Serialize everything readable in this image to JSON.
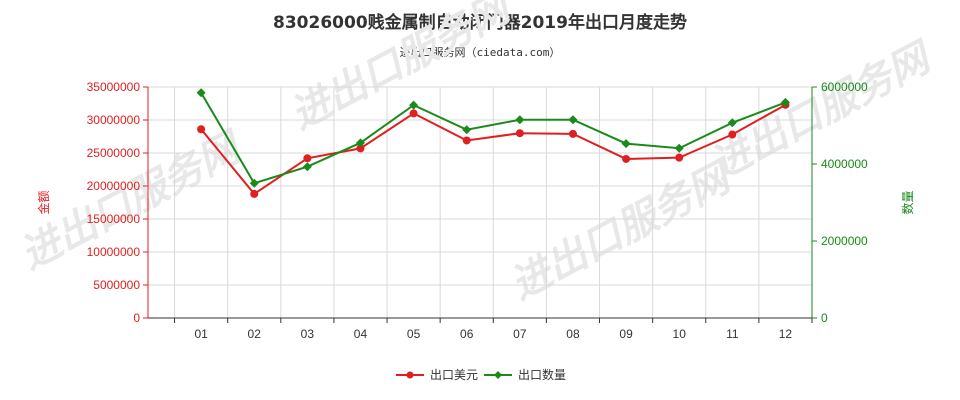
{
  "chart_data": {
    "type": "line",
    "title": "83026000贱金属制自动闭门器2019年出口月度走势",
    "subtitle": "进出口服务网（ciedata.com）",
    "categories": [
      "01",
      "02",
      "03",
      "04",
      "05",
      "06",
      "07",
      "08",
      "09",
      "10",
      "11",
      "12"
    ],
    "y_left": {
      "label": "金额",
      "ylim": [
        0,
        35000000
      ],
      "ticks": [
        "0",
        "5000000",
        "10000000",
        "15000000",
        "20000000",
        "25000000",
        "30000000",
        "35000000"
      ],
      "tick_values": [
        0,
        5000000,
        10000000,
        15000000,
        20000000,
        25000000,
        30000000,
        35000000
      ]
    },
    "y_right": {
      "label": "数量",
      "ylim": [
        0,
        6000000
      ],
      "ticks": [
        "0",
        "2000000",
        "4000000",
        "6000000"
      ],
      "tick_values": [
        0,
        2000000,
        4000000,
        6000000
      ]
    },
    "series": [
      {
        "name": "出口美元",
        "axis": "left",
        "color": "#e02020",
        "marker": "circle",
        "values": [
          28600000,
          18800000,
          24200000,
          25700000,
          31000000,
          26900000,
          28000000,
          27900000,
          24100000,
          24300000,
          27800000,
          32300000
        ]
      },
      {
        "name": "出口数量",
        "axis": "right",
        "color": "#1a8a1a",
        "marker": "diamond",
        "values": [
          5850000,
          3500000,
          3930000,
          4550000,
          5530000,
          4890000,
          5150000,
          5150000,
          4530000,
          4410000,
          5070000,
          5600000
        ]
      }
    ],
    "grid": true,
    "legend_position": "bottom",
    "watermark": "进出口服务网"
  }
}
